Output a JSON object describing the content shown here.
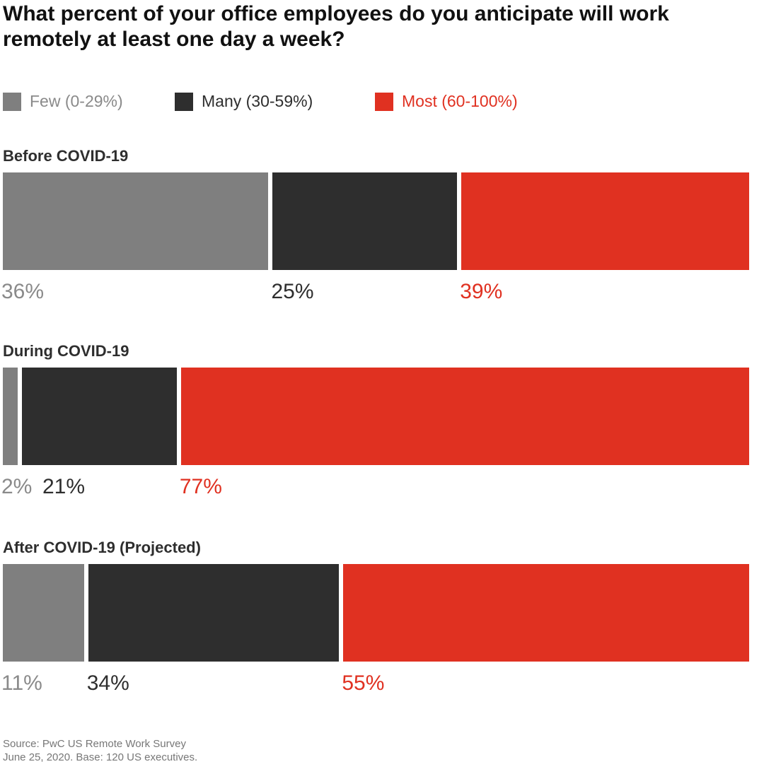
{
  "chart_data": {
    "type": "bar",
    "orientation": "horizontal",
    "stacked": true,
    "title": "What percent of your office employees do you anticipate will work remotely at least one day a week?",
    "categories": [
      "Before COVID-19",
      "During COVID-19",
      "After COVID-19 (Projected)"
    ],
    "series": [
      {
        "name": "Few (0-29%)",
        "color": "#7f7f7f",
        "values": [
          36,
          2,
          11
        ],
        "labels": [
          "36%",
          "2%",
          "11%"
        ]
      },
      {
        "name": "Many (30-59%)",
        "color": "#2e2e2e",
        "values": [
          25,
          21,
          34
        ],
        "labels": [
          "25%",
          "21%",
          "34%"
        ]
      },
      {
        "name": "Most (60-100%)",
        "color": "#e03121",
        "values": [
          39,
          77,
          55
        ],
        "labels": [
          "39%",
          "77%",
          "55%"
        ]
      }
    ],
    "xlim": [
      0,
      100
    ],
    "legend_position": "top-left",
    "grid": false
  },
  "label_colors": [
    "#8a8a8a",
    "#2e2e2e",
    "#e03121"
  ],
  "source": {
    "line1": "Source: PwC US Remote Work Survey",
    "line2": "June 25, 2020. Base: 120 US executives."
  }
}
